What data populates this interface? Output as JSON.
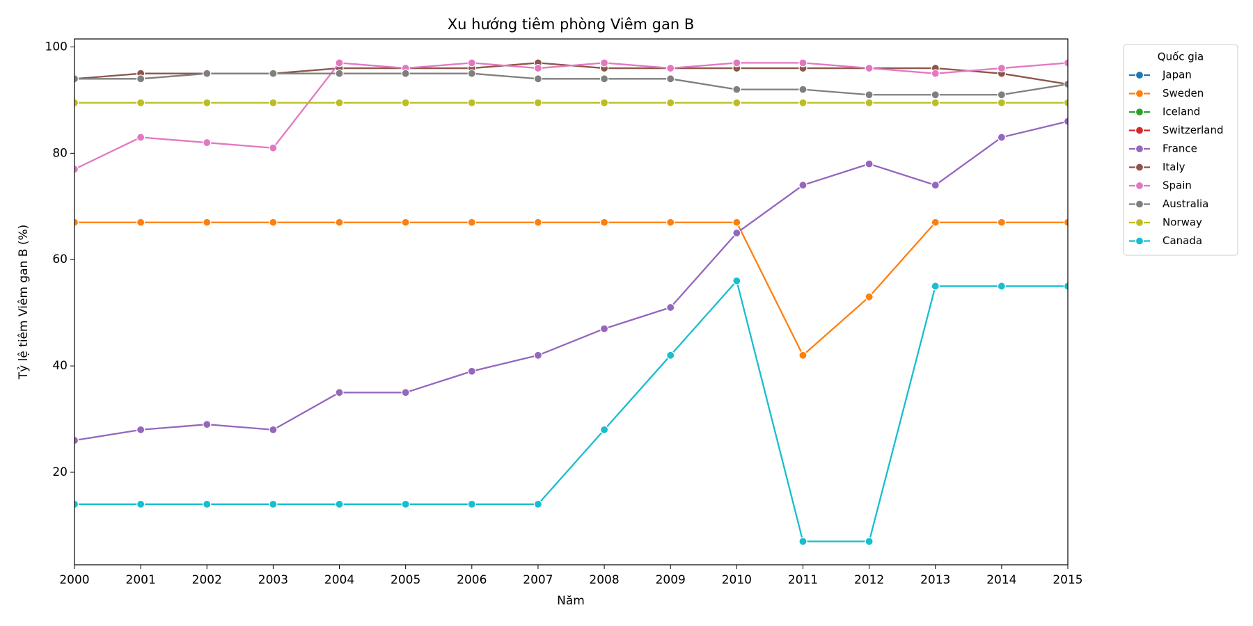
{
  "chart_data": {
    "type": "line",
    "title": "Xu hướng tiêm phòng Viêm gan B",
    "x_label": "Năm",
    "y_label": "Tỷ lệ tiêm Viêm gan B (%)",
    "legend_title": "Quốc gia",
    "legend": "outside-upper-right",
    "x": [
      2000,
      2001,
      2002,
      2003,
      2004,
      2005,
      2006,
      2007,
      2008,
      2009,
      2010,
      2011,
      2012,
      2013,
      2014,
      2015
    ],
    "xlim": [
      2000,
      2015
    ],
    "xticks": [
      2000,
      2001,
      2002,
      2003,
      2004,
      2005,
      2006,
      2007,
      2008,
      2009,
      2010,
      2011,
      2012,
      2013,
      2014,
      2015
    ],
    "ylim": [
      2.6,
      101.5
    ],
    "yticks": [
      20,
      40,
      60,
      80,
      100
    ],
    "grid": false,
    "series": [
      {
        "name": "Japan",
        "color": "#1f77b4",
        "values": [
          null,
          null,
          null,
          null,
          null,
          null,
          null,
          null,
          null,
          null,
          null,
          null,
          null,
          null,
          null,
          null
        ]
      },
      {
        "name": "Sweden",
        "color": "#ff7f0e",
        "values": [
          67,
          67,
          67,
          67,
          67,
          67,
          67,
          67,
          67,
          67,
          67,
          42,
          53,
          67,
          67,
          67
        ]
      },
      {
        "name": "Iceland",
        "color": "#2ca02c",
        "values": [
          null,
          null,
          null,
          null,
          null,
          null,
          null,
          null,
          null,
          null,
          null,
          null,
          null,
          null,
          null,
          null
        ]
      },
      {
        "name": "Switzerland",
        "color": "#d62728",
        "values": [
          null,
          null,
          null,
          null,
          null,
          null,
          null,
          null,
          null,
          null,
          null,
          null,
          null,
          null,
          null,
          null
        ]
      },
      {
        "name": "France",
        "color": "#9467bd",
        "values": [
          26,
          28,
          29,
          28,
          35,
          35,
          39,
          42,
          47,
          51,
          65,
          74,
          78,
          74,
          83,
          86
        ]
      },
      {
        "name": "Italy",
        "color": "#8c564b",
        "values": [
          94,
          95,
          95,
          95,
          96,
          96,
          96,
          97,
          96,
          96,
          96,
          96,
          96,
          96,
          95,
          93
        ]
      },
      {
        "name": "Spain",
        "color": "#e377c2",
        "values": [
          77,
          83,
          82,
          81,
          97,
          96,
          97,
          96,
          97,
          96,
          97,
          97,
          96,
          95,
          96,
          97
        ]
      },
      {
        "name": "Australia",
        "color": "#7f7f7f",
        "values": [
          94,
          94,
          95,
          95,
          95,
          95,
          95,
          94,
          94,
          94,
          92,
          92,
          91,
          91,
          91,
          93
        ]
      },
      {
        "name": "Norway",
        "color": "#bcbd22",
        "values": [
          89.5,
          89.5,
          89.5,
          89.5,
          89.5,
          89.5,
          89.5,
          89.5,
          89.5,
          89.5,
          89.5,
          89.5,
          89.5,
          89.5,
          89.5,
          89.5
        ]
      },
      {
        "name": "Canada",
        "color": "#17becf",
        "values": [
          14,
          14,
          14,
          14,
          14,
          14,
          14,
          14,
          28,
          42,
          56,
          7,
          7,
          55,
          55,
          55
        ]
      }
    ]
  }
}
